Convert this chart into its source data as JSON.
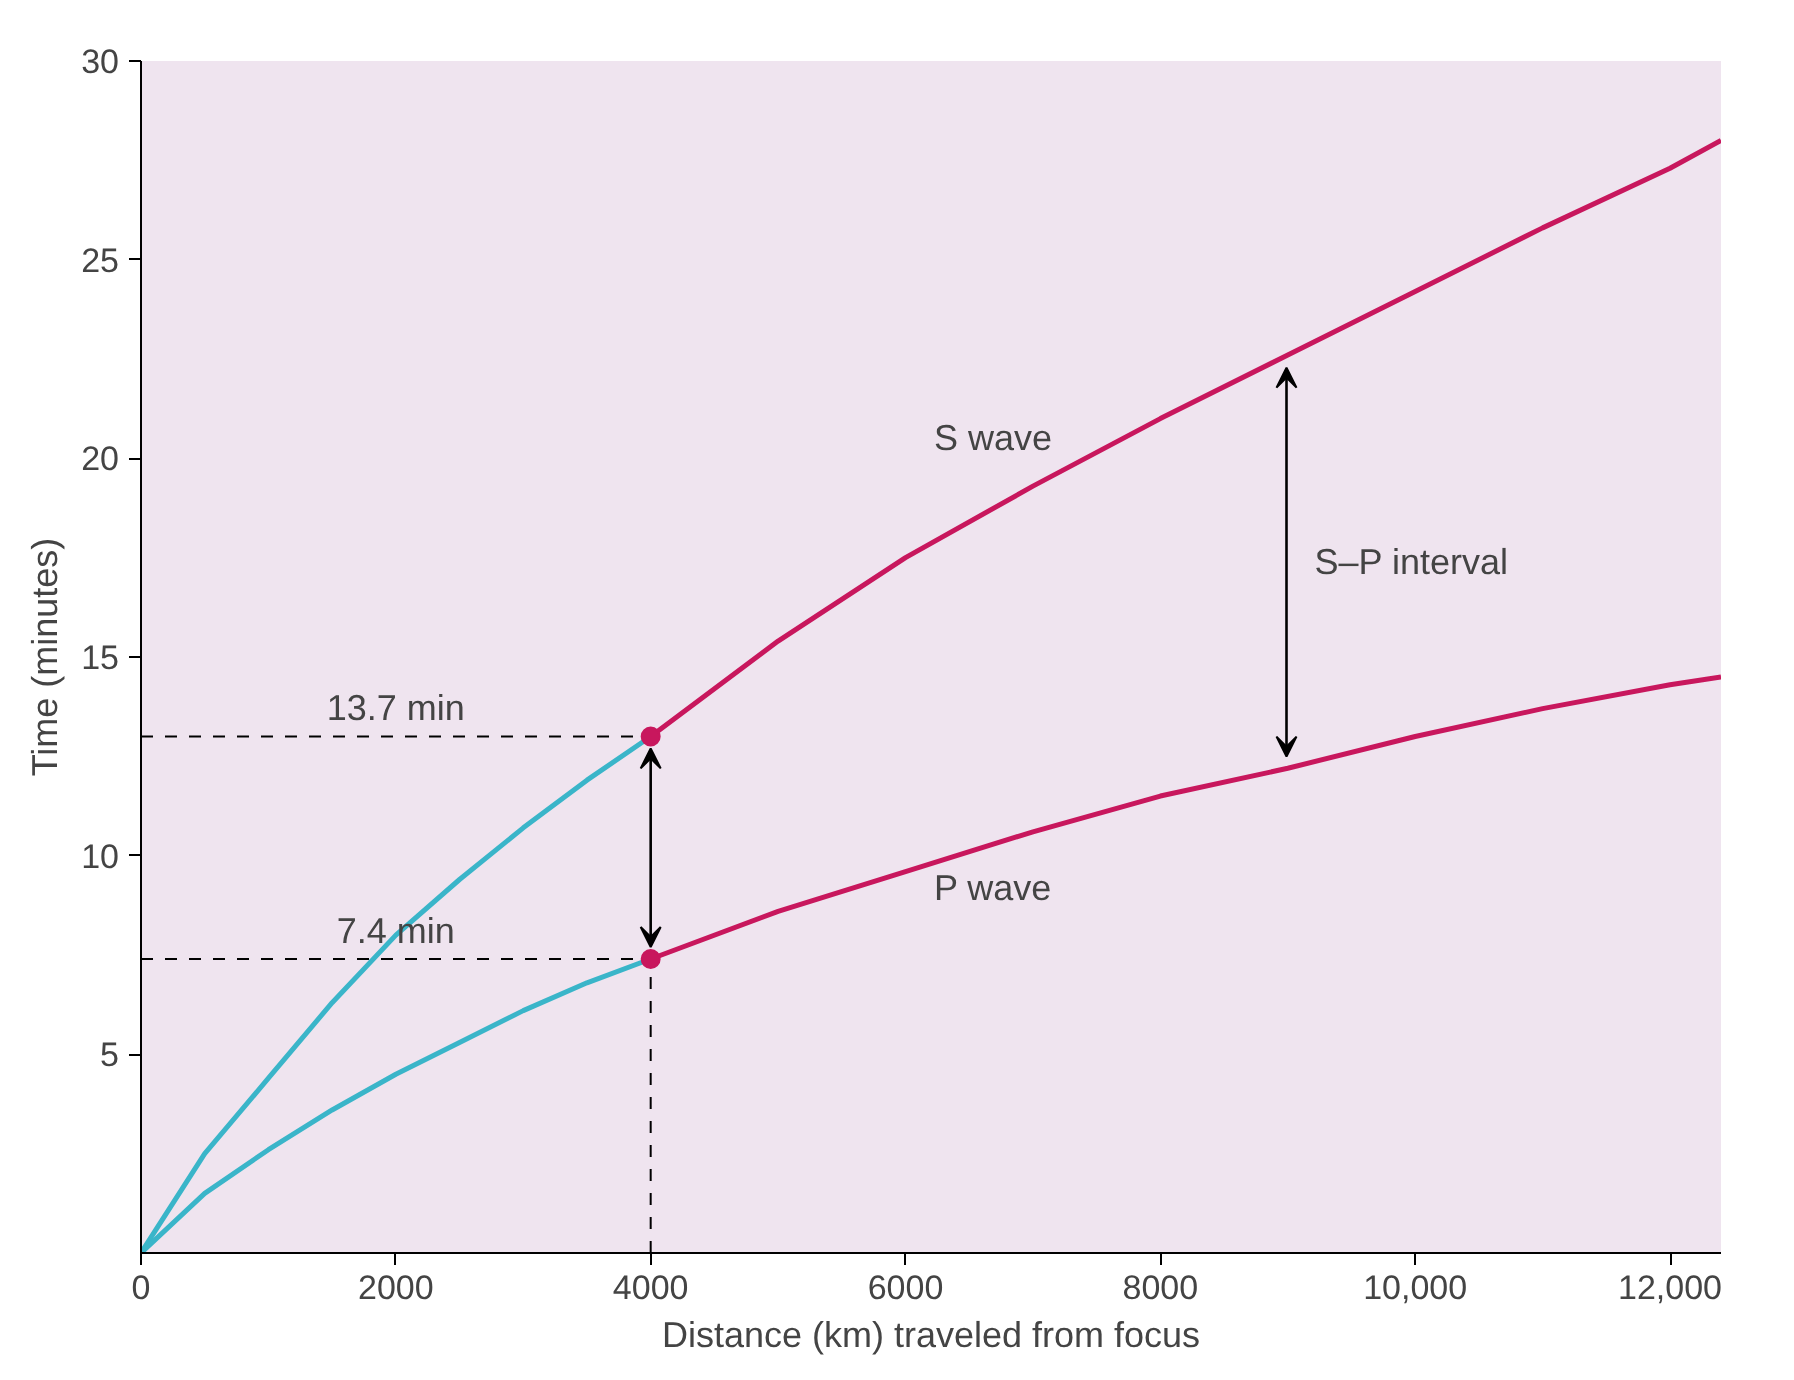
{
  "chart_data": {
    "type": "line",
    "xlabel": "Distance (km) traveled from focus",
    "ylabel": "Time (minutes)",
    "xlim": [
      0,
      12400
    ],
    "ylim": [
      0,
      30
    ],
    "xticks": [
      0,
      2000,
      4000,
      6000,
      8000,
      {
        "value": 10000,
        "label": "10,000"
      },
      {
        "value": 12000,
        "label": "12,000"
      }
    ],
    "yticks": [
      5,
      10,
      15,
      20,
      25,
      30
    ],
    "series": [
      {
        "color": "#3ab5c9",
        "x": [
          0,
          500,
          1000,
          1500,
          2000,
          2500,
          3000,
          3500,
          4000
        ],
        "values": [
          0,
          2.5,
          4.4,
          6.3,
          8.0,
          9.4,
          10.7,
          11.9,
          13.0
        ]
      },
      {
        "name": "S wave",
        "color": "#c8175d",
        "x": [
          4000,
          5000,
          6000,
          7000,
          8000,
          9000,
          10000,
          11000,
          12000,
          12400
        ],
        "values": [
          13.0,
          15.4,
          17.5,
          19.3,
          21.0,
          22.6,
          24.2,
          25.8,
          27.3,
          28.0
        ]
      },
      {
        "color": "#3ab5c9",
        "x": [
          0,
          500,
          1000,
          1500,
          2000,
          2500,
          3000,
          3500,
          4000
        ],
        "values": [
          0,
          1.5,
          2.6,
          3.6,
          4.5,
          5.3,
          6.1,
          6.8,
          7.4
        ]
      },
      {
        "name": "P wave",
        "color": "#c8175d",
        "x": [
          4000,
          5000,
          6000,
          7000,
          8000,
          9000,
          10000,
          11000,
          12000,
          12400
        ],
        "values": [
          7.4,
          8.6,
          9.6,
          10.6,
          11.5,
          12.2,
          13.0,
          13.7,
          14.3,
          14.5
        ]
      },
      {
        "color": "#000000",
        "line_style": "dashed",
        "x": [
          0,
          4000
        ],
        "values": [
          13.0,
          13.0
        ]
      },
      {
        "color": "#000000",
        "line_style": "dashed",
        "x": [
          0,
          4000
        ],
        "values": [
          7.4,
          7.4
        ]
      },
      {
        "color": "#000000",
        "line_style": "dashed",
        "x": [
          4000,
          4000
        ],
        "values": [
          0,
          7.4
        ]
      },
      {
        "type": "scatter",
        "color": "#c8175d",
        "x": [
          4000,
          4000
        ],
        "values": [
          13.0,
          7.4
        ]
      }
    ],
    "annotations": [
      {
        "text": "13.7 min",
        "x": 2000,
        "y": 13.0
      },
      {
        "text": "7.4 min",
        "x": 2000,
        "y": 7.4
      },
      "S–P interval"
    ],
    "grid": false
  }
}
